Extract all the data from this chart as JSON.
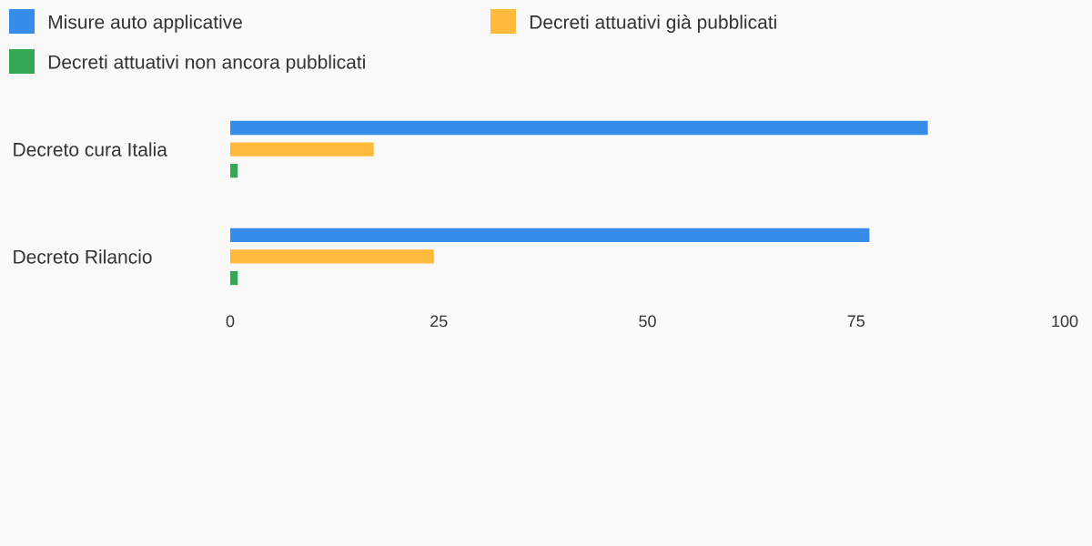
{
  "chart_data": {
    "type": "bar",
    "orientation": "horizontal",
    "categories": [
      "Decreto cura Italia",
      "Decreto Rilancio"
    ],
    "series": [
      {
        "name": "Misure auto applicative",
        "color": "#358de9",
        "values": [
          83.6,
          76.6
        ]
      },
      {
        "name": "Decreti attuativi già pubblicati",
        "color": "#ffb93b",
        "values": [
          17.2,
          24.4
        ]
      },
      {
        "name": "Decreti attuativi non ancora pubblicati",
        "color": "#34a853",
        "values": [
          0.9,
          0.9
        ]
      }
    ],
    "xlim": [
      0,
      100
    ],
    "xticks": [
      0,
      25,
      50,
      75,
      100
    ],
    "grid": false,
    "legend": "top"
  }
}
